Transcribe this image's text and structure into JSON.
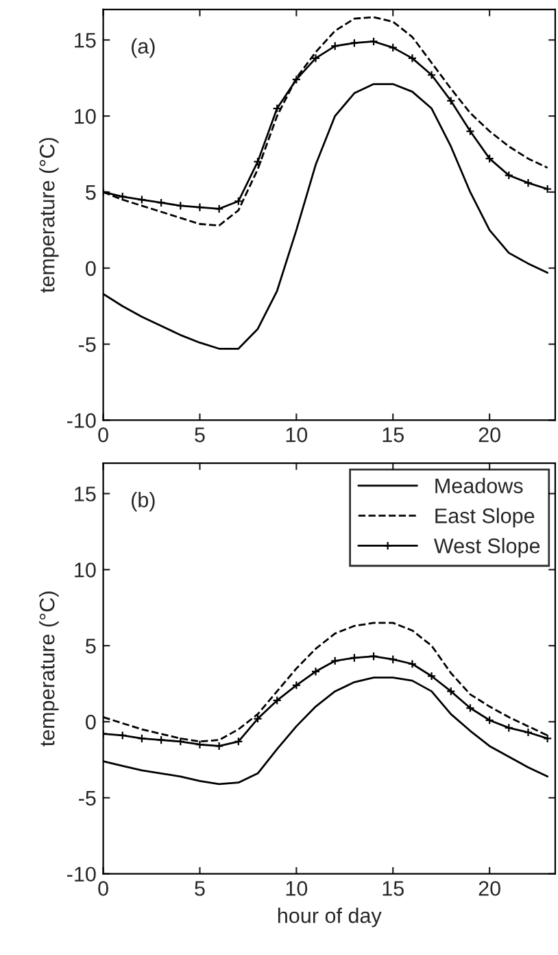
{
  "chart_data": [
    {
      "type": "line",
      "ylabel": "temperature (°C)",
      "annotations": [
        "(a)"
      ],
      "x": [
        0,
        1,
        2,
        3,
        4,
        5,
        6,
        7,
        8,
        9,
        10,
        11,
        12,
        13,
        14,
        15,
        16,
        17,
        18,
        19,
        20,
        21,
        22,
        23
      ],
      "xlim": [
        0,
        23.4
      ],
      "ylim": [
        -10,
        17
      ],
      "xticks": [
        0,
        5,
        10,
        15,
        20
      ],
      "yticks": [
        -10,
        -5,
        0,
        5,
        10,
        15
      ],
      "grid": false,
      "legend": false,
      "series": [
        {
          "color": "#000000",
          "line_style": "solid",
          "marker": "none",
          "values": [
            -1.7,
            -2.5,
            -3.2,
            -3.8,
            -4.4,
            -4.9,
            -5.3,
            -5.3,
            -4.0,
            -1.5,
            2.5,
            6.8,
            10.0,
            11.5,
            12.1,
            12.1,
            11.6,
            10.5,
            8.0,
            5.0,
            2.5,
            1.0,
            0.3,
            -0.3
          ]
        },
        {
          "color": "#000000",
          "line_style": "dashed",
          "marker": "none",
          "values": [
            5.0,
            4.5,
            4.1,
            3.7,
            3.3,
            2.9,
            2.8,
            3.8,
            6.5,
            10.0,
            12.5,
            14.2,
            15.6,
            16.4,
            16.5,
            16.2,
            15.2,
            13.5,
            11.8,
            10.2,
            9.0,
            8.0,
            7.2,
            6.6
          ]
        },
        {
          "color": "#000000",
          "line_style": "solid",
          "marker": "cross",
          "values": [
            5.0,
            4.7,
            4.5,
            4.3,
            4.1,
            4.0,
            3.9,
            4.4,
            7.0,
            10.5,
            12.4,
            13.8,
            14.6,
            14.8,
            14.9,
            14.5,
            13.8,
            12.7,
            11.0,
            9.0,
            7.2,
            6.1,
            5.6,
            5.2
          ]
        }
      ]
    },
    {
      "type": "line",
      "xlabel": "hour of day",
      "ylabel": "temperature (°C)",
      "annotations": [
        "(b)"
      ],
      "x": [
        0,
        1,
        2,
        3,
        4,
        5,
        6,
        7,
        8,
        9,
        10,
        11,
        12,
        13,
        14,
        15,
        16,
        17,
        18,
        19,
        20,
        21,
        22,
        23
      ],
      "xlim": [
        0,
        23.4
      ],
      "ylim": [
        -10,
        17
      ],
      "xticks": [
        0,
        5,
        10,
        15,
        20
      ],
      "yticks": [
        -10,
        -5,
        0,
        5,
        10,
        15
      ],
      "grid": false,
      "legend": "top right",
      "series": [
        {
          "name": "Meadows",
          "color": "#000000",
          "line_style": "solid",
          "marker": "none",
          "values": [
            -2.6,
            -2.9,
            -3.2,
            -3.4,
            -3.6,
            -3.9,
            -4.1,
            -4.0,
            -3.4,
            -1.8,
            -0.3,
            1.0,
            2.0,
            2.6,
            2.9,
            2.9,
            2.7,
            2.0,
            0.5,
            -0.6,
            -1.6,
            -2.3,
            -3.0,
            -3.6
          ]
        },
        {
          "name": "East Slope",
          "color": "#000000",
          "line_style": "dashed",
          "marker": "none",
          "values": [
            0.3,
            -0.1,
            -0.5,
            -0.8,
            -1.1,
            -1.3,
            -1.2,
            -0.5,
            0.5,
            2.0,
            3.5,
            4.8,
            5.8,
            6.3,
            6.5,
            6.5,
            6.0,
            5.0,
            3.2,
            1.8,
            1.0,
            0.3,
            -0.3,
            -0.9
          ]
        },
        {
          "name": "West Slope",
          "color": "#000000",
          "line_style": "solid",
          "marker": "cross",
          "values": [
            -0.8,
            -0.9,
            -1.1,
            -1.2,
            -1.3,
            -1.5,
            -1.6,
            -1.3,
            0.2,
            1.4,
            2.4,
            3.3,
            4.0,
            4.2,
            4.3,
            4.1,
            3.8,
            3.0,
            2.0,
            0.9,
            0.1,
            -0.4,
            -0.7,
            -1.1
          ]
        }
      ]
    }
  ]
}
